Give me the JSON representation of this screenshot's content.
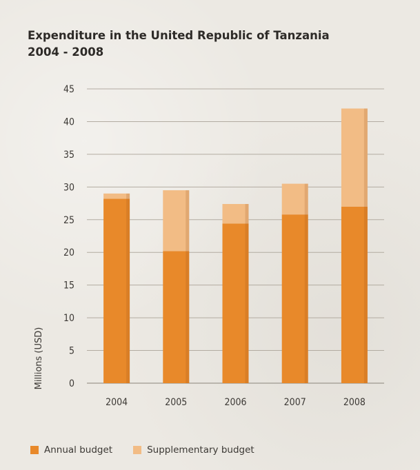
{
  "chart_data": {
    "type": "bar",
    "stacked": true,
    "title": "Expenditure in the United Republic of Tanzania",
    "subtitle": "2004 - 2008",
    "ylabel": "Millions (USD)",
    "xlabel": "",
    "categories": [
      "2004",
      "2005",
      "2006",
      "2007",
      "2008"
    ],
    "ylim": [
      0,
      45
    ],
    "yticks": [
      0,
      5,
      10,
      15,
      20,
      25,
      30,
      35,
      40,
      45
    ],
    "grid": true,
    "legend_position": "bottom-left",
    "series": [
      {
        "name": "Annual budget",
        "color": "#e8892a",
        "values": [
          28.2,
          20.2,
          24.4,
          25.8,
          27.0
        ]
      },
      {
        "name": "Supplementary budget",
        "color": "#f2bc85",
        "values": [
          0.8,
          9.3,
          3.0,
          4.7,
          15.0
        ]
      }
    ]
  }
}
